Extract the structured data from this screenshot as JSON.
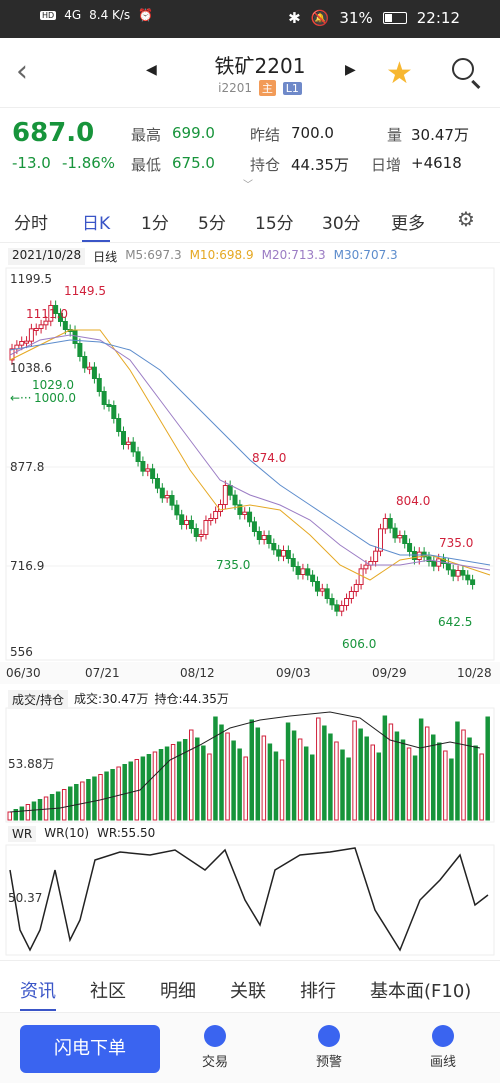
{
  "status": {
    "network": "4G",
    "speed": "8.4 K/s",
    "battery": "31%",
    "time": "22:12"
  },
  "header": {
    "title": "铁矿2201",
    "code": "i2201",
    "tag_main": "主",
    "tag_l1": "L1"
  },
  "quote": {
    "price": "687.0",
    "change": "-13.0",
    "change_pct": "-1.86%",
    "high_label": "最高",
    "high": "699.0",
    "low_label": "最低",
    "low": "675.0",
    "prev_label": "昨结",
    "prev": "700.0",
    "oi_label": "持仓",
    "oi": "44.35万",
    "vol_label": "量",
    "vol": "30.47万",
    "daily_label": "日增",
    "daily": "+4618"
  },
  "tabs": [
    "分时",
    "日K",
    "1分",
    "5分",
    "15分",
    "30分",
    "更多"
  ],
  "kline": {
    "date": "2021/10/28",
    "period": "日线",
    "ma5": "M5:697.3",
    "ma10": "M10:698.9",
    "ma20": "M20:713.3",
    "ma30": "M30:707.3",
    "y_labels": [
      "1199.5",
      "1038.6",
      "877.8",
      "716.9",
      "556"
    ],
    "x_labels": [
      "06/30",
      "07/21",
      "08/12",
      "09/03",
      "09/29",
      "10/28"
    ],
    "annotations": [
      "1149.5",
      "1111.0",
      "1029.0",
      "1000.0",
      "874.0",
      "735.0",
      "804.0",
      "735.0",
      "606.0",
      "642.5"
    ]
  },
  "volume": {
    "label": "成交/持仓",
    "vol_text": "成交:30.47万",
    "oi_text": "持仓:44.35万",
    "y_label": "53.88万"
  },
  "wr": {
    "label": "WR",
    "name": "WR(10)",
    "value": "WR:55.50",
    "y_label": "50.37"
  },
  "bottom_tabs": [
    "资讯",
    "社区",
    "明细",
    "关联",
    "排行",
    "基本面(F10)"
  ],
  "footer": {
    "flash": "闪电下单",
    "trade": "交易",
    "alert": "预警",
    "draw": "画线"
  },
  "colors": {
    "up": "#d0213b",
    "down": "#17943b",
    "accent": "#3a55c7"
  }
}
